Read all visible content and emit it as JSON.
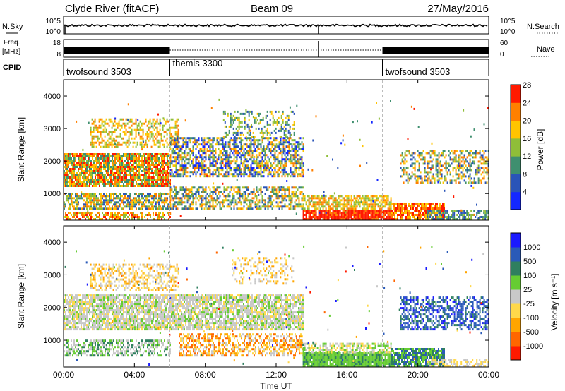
{
  "header": {
    "station": "Clyde River (fitACF)",
    "beam": "Beam 09",
    "date": "27/May/2016"
  },
  "top_panels": {
    "nsky_label": "N.Sky",
    "nsky_ticks": [
      "10^5",
      "10^0"
    ],
    "nsearch_label": "N.Search",
    "nsearch_ticks": [
      "10^5",
      "10^0"
    ],
    "freq_label_1": "Freq.",
    "freq_label_2": "[MHz]",
    "freq_ticks": [
      "18",
      "8"
    ],
    "nave_label": "Nave",
    "nave_ticks": [
      "60",
      "0"
    ],
    "cpid_label": "CPID",
    "cpid_segments": [
      {
        "label": "twofsound 3503",
        "start_h": 0,
        "end_h": 6
      },
      {
        "label": "themis 3300",
        "start_h": 6,
        "end_h": 18
      },
      {
        "label": "twofsound 3503",
        "start_h": 18,
        "end_h": 24
      }
    ]
  },
  "chart_data": [
    {
      "type": "heatmap",
      "panel": "power",
      "ylabel": "Slant Range [km]",
      "yticks": [
        1000,
        2000,
        3000,
        4000
      ],
      "ylim": [
        180,
        4500
      ],
      "xlim": [
        0,
        24
      ],
      "colorbar_label": "Power [dB]",
      "colorbar_ticks": [
        "4",
        "8",
        "12",
        "16",
        "20",
        "24",
        "28"
      ],
      "colorbar_colors": [
        "#1428ff",
        "#2a54b8",
        "#3f8f6f",
        "#8fbe38",
        "#ffc400",
        "#ff8000",
        "#ff1a00"
      ],
      "bands": [
        {
          "t0": 0.0,
          "t1": 6.0,
          "r0": 1200,
          "r1": 2200,
          "density": 0.85,
          "levels": [
            2,
            3,
            4,
            5,
            6
          ]
        },
        {
          "t0": 0.0,
          "t1": 6.0,
          "r0": 500,
          "r1": 1000,
          "density": 0.7,
          "levels": [
            1,
            2,
            3,
            4,
            5
          ]
        },
        {
          "t0": 0.0,
          "t1": 6.0,
          "r0": 180,
          "r1": 400,
          "density": 0.6,
          "levels": [
            3,
            4,
            5,
            6
          ]
        },
        {
          "t0": 1.5,
          "t1": 6.5,
          "r0": 2400,
          "r1": 3300,
          "density": 0.45,
          "levels": [
            3,
            4,
            5
          ]
        },
        {
          "t0": 6.0,
          "t1": 13.5,
          "r0": 1500,
          "r1": 2700,
          "density": 0.6,
          "levels": [
            0,
            1,
            2,
            3,
            4,
            5
          ]
        },
        {
          "t0": 6.0,
          "t1": 13.5,
          "r0": 500,
          "r1": 1200,
          "density": 0.55,
          "levels": [
            1,
            2,
            3,
            4,
            5
          ]
        },
        {
          "t0": 9.0,
          "t1": 13.0,
          "r0": 2700,
          "r1": 3500,
          "density": 0.3,
          "levels": [
            1,
            2,
            3,
            4
          ]
        },
        {
          "t0": 13.5,
          "t1": 18.5,
          "r0": 180,
          "r1": 500,
          "density": 0.95,
          "levels": [
            6,
            6,
            6,
            5
          ]
        },
        {
          "t0": 13.5,
          "t1": 18.5,
          "r0": 500,
          "r1": 900,
          "density": 0.7,
          "levels": [
            3,
            4,
            5
          ]
        },
        {
          "t0": 18.5,
          "t1": 21.5,
          "r0": 180,
          "r1": 700,
          "density": 0.8,
          "levels": [
            4,
            5,
            6
          ]
        },
        {
          "t0": 19.0,
          "t1": 24.0,
          "r0": 1300,
          "r1": 2300,
          "density": 0.45,
          "levels": [
            1,
            2,
            3,
            4,
            5
          ]
        },
        {
          "t0": 20.5,
          "t1": 24.0,
          "r0": 180,
          "r1": 500,
          "density": 0.6,
          "levels": [
            1,
            2,
            3
          ]
        }
      ]
    },
    {
      "type": "heatmap",
      "panel": "velocity",
      "ylabel": "Slant Range [km]",
      "yticks": [
        1000,
        2000,
        3000,
        4000
      ],
      "ylim": [
        180,
        4500
      ],
      "xlim": [
        0,
        24
      ],
      "xticks": [
        "00:00",
        "04:00",
        "08:00",
        "12:00",
        "16:00",
        "20:00",
        "00:00"
      ],
      "xlabel": "Time UT",
      "colorbar_label": "Velocity [m s⁻¹]",
      "colorbar_ticks": [
        "1000",
        "500",
        "100",
        "25",
        "-25",
        "-100",
        "-500",
        "-1000"
      ],
      "colorbar_colors": [
        "#ff1a00",
        "#ff6600",
        "#ffa500",
        "#ffd84a",
        "#c8c8c8",
        "#66cc33",
        "#2f7f5f",
        "#2a5ab8",
        "#1a1aff"
      ],
      "bands": [
        {
          "t0": 0.0,
          "t1": 13.5,
          "r0": 1300,
          "r1": 2400,
          "density": 0.8,
          "levels": [
            4,
            4,
            4,
            3,
            5
          ]
        },
        {
          "t0": 0.0,
          "t1": 6.0,
          "r0": 500,
          "r1": 1000,
          "density": 0.55,
          "levels": [
            4,
            6,
            5,
            4
          ]
        },
        {
          "t0": 1.5,
          "t1": 6.5,
          "r0": 2500,
          "r1": 3300,
          "density": 0.4,
          "levels": [
            3,
            2,
            4
          ]
        },
        {
          "t0": 6.5,
          "t1": 13.5,
          "r0": 500,
          "r1": 1200,
          "density": 0.55,
          "levels": [
            2,
            3,
            1,
            4
          ]
        },
        {
          "t0": 9.5,
          "t1": 13.0,
          "r0": 2700,
          "r1": 3500,
          "density": 0.25,
          "levels": [
            2,
            3,
            4
          ]
        },
        {
          "t0": 13.5,
          "t1": 18.5,
          "r0": 180,
          "r1": 600,
          "density": 0.95,
          "levels": [
            5,
            5,
            5,
            6
          ]
        },
        {
          "t0": 13.5,
          "t1": 18.5,
          "r0": 600,
          "r1": 900,
          "density": 0.6,
          "levels": [
            4,
            5,
            3
          ]
        },
        {
          "t0": 18.5,
          "t1": 21.5,
          "r0": 180,
          "r1": 700,
          "density": 0.8,
          "levels": [
            6,
            5,
            7
          ]
        },
        {
          "t0": 19.0,
          "t1": 24.0,
          "r0": 1300,
          "r1": 2300,
          "density": 0.5,
          "levels": [
            7,
            7,
            8,
            6
          ]
        },
        {
          "t0": 20.5,
          "t1": 24.0,
          "r0": 180,
          "r1": 400,
          "density": 0.5,
          "levels": [
            3,
            4
          ]
        }
      ]
    }
  ]
}
